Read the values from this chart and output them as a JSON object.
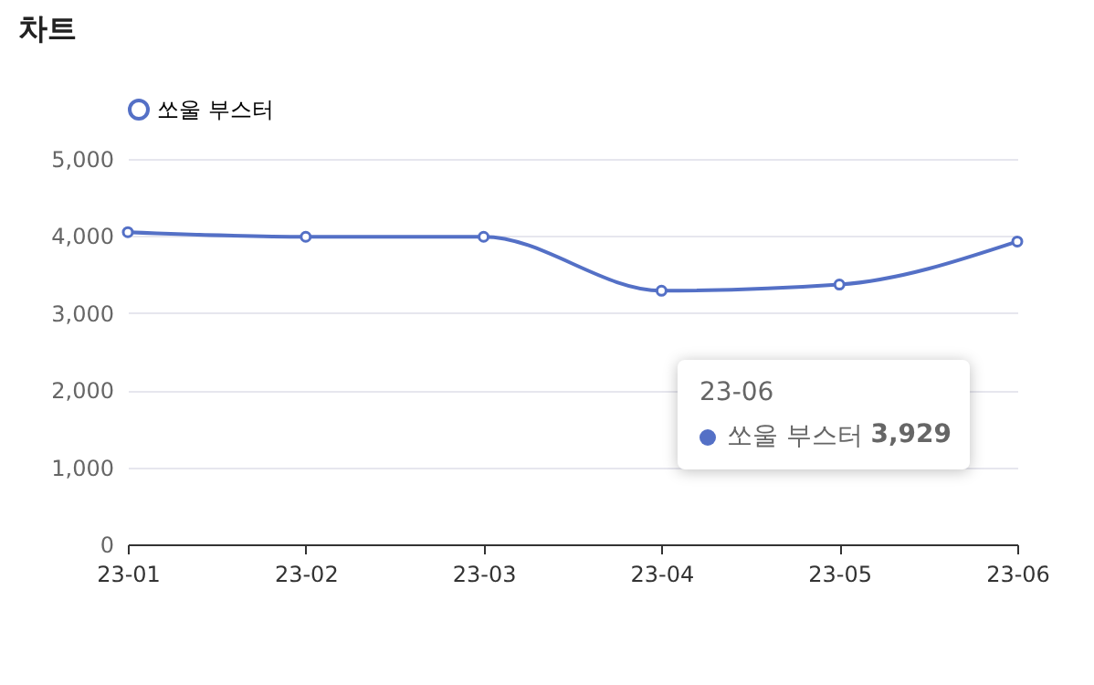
{
  "chart_data": {
    "type": "line",
    "title": "차트",
    "categories": [
      "23-01",
      "23-02",
      "23-03",
      "23-04",
      "23-05",
      "23-06"
    ],
    "series": [
      {
        "name": "쏘울 부스터",
        "color": "#5470c6",
        "values": [
          4050,
          3990,
          3990,
          3290,
          3370,
          3929
        ]
      }
    ],
    "ylim": [
      0,
      5000
    ],
    "yticks": [
      0,
      {
        "value": 1000,
        "label": "1,000"
      },
      {
        "value": 2000,
        "label": "2,000"
      },
      {
        "value": 3000,
        "label": "3,000"
      },
      {
        "value": 4000,
        "label": "4,000"
      },
      {
        "value": 5000,
        "label": "5,000"
      }
    ],
    "grid": "y",
    "legend": "top",
    "marker": "circle",
    "line_style": "solid",
    "annotations": [
      "23-06",
      "쏘울 부스터",
      "3,929"
    ]
  }
}
